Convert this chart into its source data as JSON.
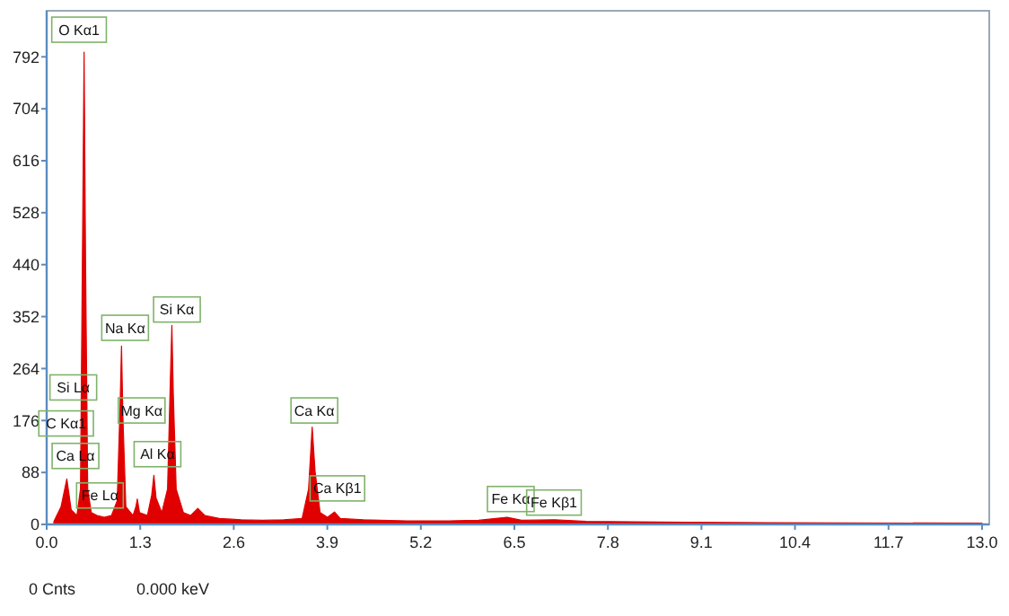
{
  "chart_data": {
    "type": "area",
    "x": [
      0.1,
      0.2,
      0.28,
      0.34,
      0.42,
      0.47,
      0.5,
      0.52,
      0.54,
      0.57,
      0.62,
      0.7,
      0.8,
      0.9,
      0.98,
      1.02,
      1.04,
      1.06,
      1.1,
      1.2,
      1.24,
      1.26,
      1.29,
      1.4,
      1.46,
      1.49,
      1.52,
      1.6,
      1.68,
      1.72,
      1.74,
      1.76,
      1.8,
      1.9,
      2.0,
      2.1,
      2.2,
      2.4,
      2.7,
      3.0,
      3.3,
      3.55,
      3.64,
      3.69,
      3.73,
      3.8,
      3.9,
      4.0,
      4.08,
      4.4,
      5.0,
      5.6,
      6.0,
      6.4,
      6.6,
      7.06,
      7.5,
      8.5,
      10,
      13
    ],
    "series": [
      {
        "color": "#e00000",
        "values": [
          5,
          30,
          77,
          25,
          15,
          60,
          500,
          800,
          450,
          60,
          20,
          15,
          12,
          15,
          40,
          200,
          302,
          180,
          30,
          15,
          30,
          43,
          20,
          15,
          50,
          83,
          45,
          20,
          60,
          250,
          337,
          220,
          60,
          20,
          15,
          27,
          15,
          10,
          8,
          7,
          8,
          10,
          60,
          165,
          90,
          20,
          12,
          21,
          10,
          8,
          6,
          6,
          7,
          12,
          7,
          8,
          5,
          4,
          3,
          2
        ]
      }
    ],
    "xlim": [
      0,
      13.1
    ],
    "xticks": [
      {
        "value": 0,
        "label": "0.0"
      },
      1.3,
      2.6,
      3.9,
      5.2,
      6.5,
      7.8,
      9.1,
      10.4,
      11.7,
      {
        "value": 13,
        "label": "13.0"
      }
    ],
    "ylim": [
      0,
      870
    ],
    "yticks": [
      0,
      88,
      176,
      264,
      352,
      440,
      528,
      616,
      704,
      792
    ],
    "grid": false,
    "annotations": [
      {
        "text": "O  Kα1",
        "x": 0.45,
        "y": 838
      },
      {
        "text": "Na Kα",
        "x": 1.09,
        "y": 333
      },
      {
        "text": "Si Kα",
        "x": 1.81,
        "y": 364
      },
      {
        "text": "Si Lα",
        "x": 0.37,
        "y": 232
      },
      {
        "text": "C  Kα1",
        "x": 0.27,
        "y": 171
      },
      {
        "text": "Ca Lα",
        "x": 0.4,
        "y": 116
      },
      {
        "text": "Fe Lα",
        "x": 0.74,
        "y": 49
      },
      {
        "text": "Mg Kα",
        "x": 1.32,
        "y": 193
      },
      {
        "text": "Al Kα",
        "x": 1.54,
        "y": 119
      },
      {
        "text": "Ca Kα",
        "x": 3.72,
        "y": 193
      },
      {
        "text": "Ca Kβ1",
        "x": 4.04,
        "y": 61
      },
      {
        "text": "Fe Kα",
        "x": 6.45,
        "y": 43
      },
      {
        "text": "Fe Kβ1",
        "x": 7.05,
        "y": 37
      },
      "0 Cnts",
      "0.000 keV"
    ]
  }
}
